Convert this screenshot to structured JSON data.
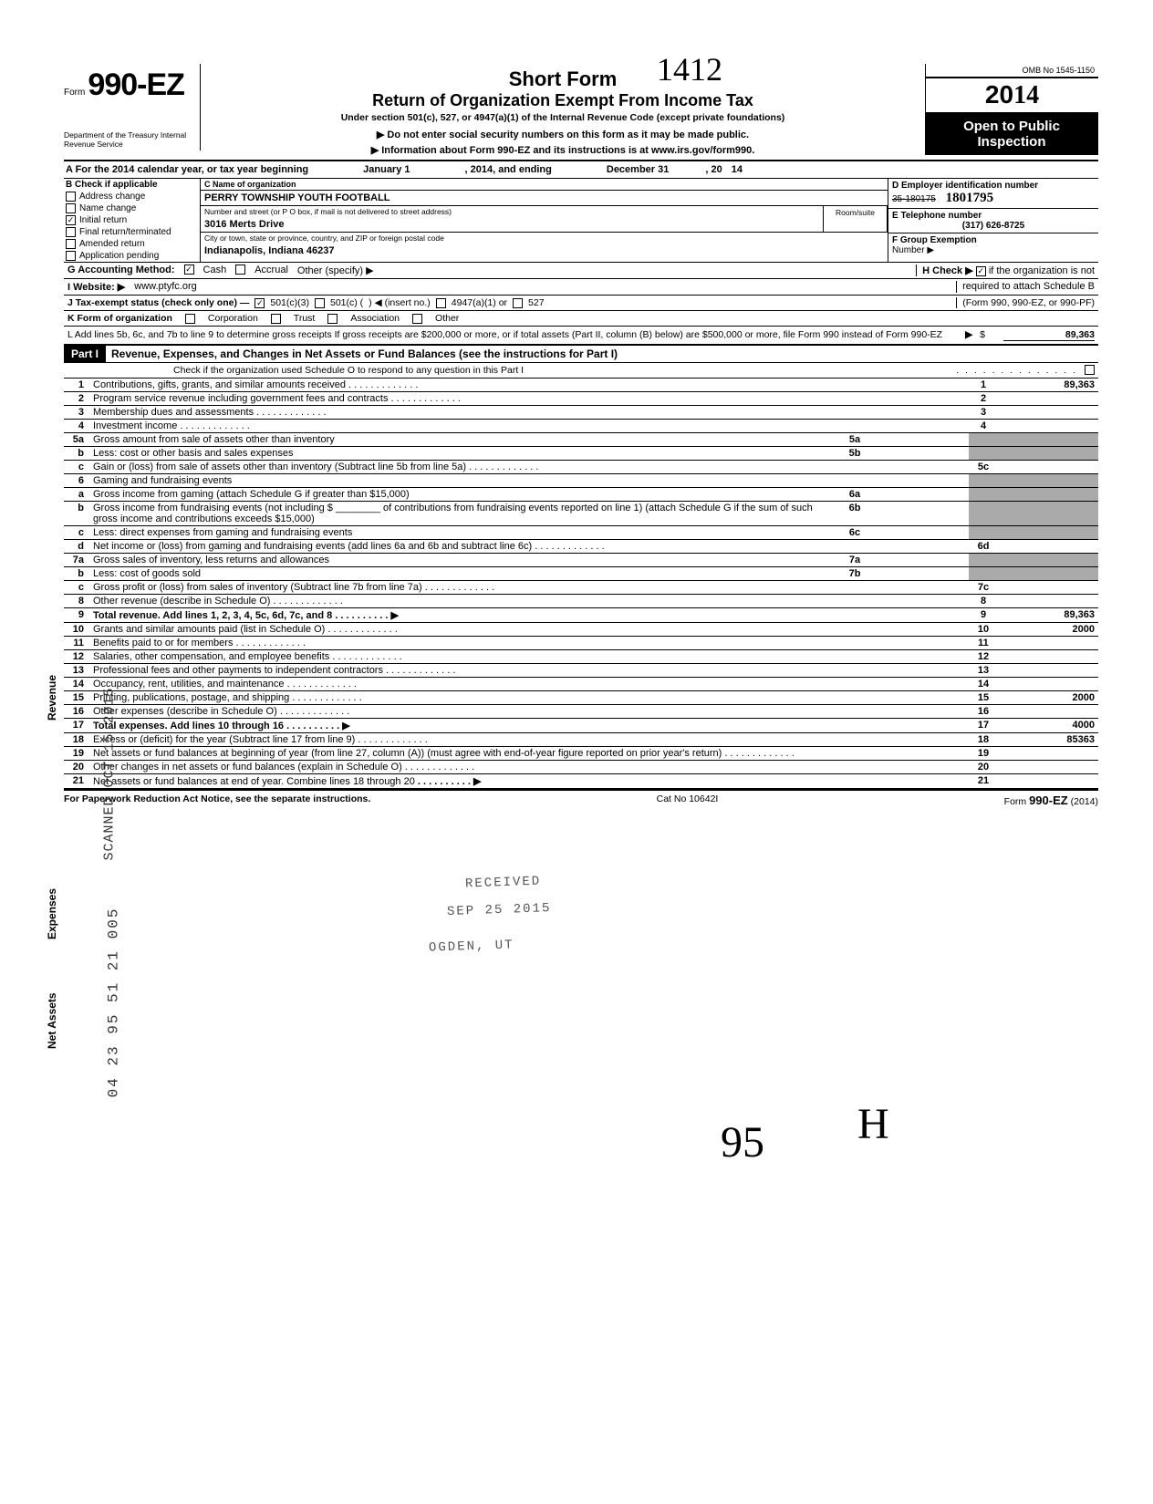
{
  "header": {
    "form_prefix": "Form",
    "form_number": "990-EZ",
    "short_form": "Short Form",
    "return_title": "Return of Organization Exempt From Income Tax",
    "under_section": "Under section 501(c), 527, or 4947(a)(1) of the Internal Revenue Code (except private foundations)",
    "do_not_enter": "▶ Do not enter social security numbers on this form as it may be made public.",
    "info_about": "▶ Information about Form 990-EZ and its instructions is at www.irs.gov/form990.",
    "omb": "OMB No 1545-1150",
    "year_prefix": "20",
    "year_hw": "14",
    "open_public": "Open to Public",
    "inspection": "Inspection",
    "dept": "Department of the Treasury\nInternal Revenue Service",
    "hw_top": "1412"
  },
  "line_a": {
    "prefix": "A  For the 2014 calendar year, or tax year beginning",
    "begin": "January 1",
    "mid": ", 2014, and ending",
    "end_month": "December 31",
    "end_year_lbl": ", 20",
    "end_year": "14"
  },
  "col_b": {
    "header": "B  Check if applicable",
    "items": [
      {
        "label": "Address change",
        "checked": false
      },
      {
        "label": "Name change",
        "checked": false
      },
      {
        "label": "Initial return",
        "checked": true
      },
      {
        "label": "Final return/terminated",
        "checked": false
      },
      {
        "label": "Amended return",
        "checked": false
      },
      {
        "label": "Application pending",
        "checked": false
      }
    ]
  },
  "col_c": {
    "name_lbl": "C  Name of organization",
    "name": "PERRY TOWNSHIP YOUTH FOOTBALL",
    "addr_lbl": "Number and street (or P O  box, if mail is not delivered to street address)",
    "addr": "3016 Merts Drive",
    "city_lbl": "City or town, state or province, country, and ZIP or foreign postal code",
    "city": "Indianapolis, Indiana  46237",
    "room_lbl": "Room/suite"
  },
  "col_d": {
    "ein_lbl": "D  Employer identification number",
    "ein_old": "35-180175",
    "ein_hw": "1801795",
    "phone_lbl": "E  Telephone number",
    "phone": "(317) 626-8725",
    "group_lbl": "F  Group Exemption",
    "group_num": "Number  ▶"
  },
  "row_g": {
    "g_lbl": "G  Accounting Method:",
    "cash": "Cash",
    "accrual": "Accrual",
    "other": "Other (specify) ▶",
    "h_text": "H  Check ▶",
    "h_rest": "if the organization is not",
    "h_line2": "required to attach Schedule B",
    "h_line3": "(Form 990, 990-EZ, or 990-PF)"
  },
  "row_i": {
    "lbl": "I   Website: ▶",
    "val": "www.ptyfc.org"
  },
  "row_j": {
    "lbl": "J  Tax-exempt status (check only one) —",
    "a": "501(c)(3)",
    "b": "501(c) (",
    "insert": ") ◀ (insert no.)",
    "c": "4947(a)(1) or",
    "d": "527"
  },
  "row_k": {
    "lbl": "K  Form of organization",
    "corp": "Corporation",
    "trust": "Trust",
    "assoc": "Association",
    "other": "Other"
  },
  "row_l": {
    "text": "L  Add lines 5b, 6c, and 7b to line 9 to determine gross receipts  If gross receipts are $200,000 or more, or if total assets (Part II, column (B) below) are $500,000 or more, file Form 990 instead of Form 990-EZ",
    "arrow": "▶",
    "dollar": "$",
    "val": "89,363"
  },
  "part1": {
    "hdr": "Part I",
    "title": "Revenue, Expenses, and Changes in Net Assets or Fund Balances (see the instructions for Part I)",
    "check": "Check if the organization used Schedule O to respond to any question in this Part I"
  },
  "lines": [
    {
      "n": "1",
      "desc": "Contributions, gifts, grants, and similar amounts received",
      "rn": "1",
      "rv": "89,363"
    },
    {
      "n": "2",
      "desc": "Program service revenue including government fees and contracts",
      "rn": "2",
      "rv": ""
    },
    {
      "n": "3",
      "desc": "Membership dues and assessments",
      "rn": "3",
      "rv": ""
    },
    {
      "n": "4",
      "desc": "Investment income",
      "rn": "4",
      "rv": ""
    },
    {
      "n": "5a",
      "desc": "Gross amount from sale of assets other than inventory",
      "mn": "5a",
      "mv": "",
      "shade_r": true
    },
    {
      "n": "b",
      "desc": "Less: cost or other basis and sales expenses",
      "mn": "5b",
      "mv": "",
      "shade_r": true
    },
    {
      "n": "c",
      "desc": "Gain or (loss) from sale of assets other than inventory (Subtract line 5b from line 5a)",
      "rn": "5c",
      "rv": ""
    },
    {
      "n": "6",
      "desc": "Gaming and fundraising events",
      "shade_r": true,
      "shade_all": true
    },
    {
      "n": "a",
      "desc": "Gross income from gaming (attach Schedule G if greater than $15,000)",
      "mn": "6a",
      "mv": "",
      "shade_r": true
    },
    {
      "n": "b",
      "desc": "Gross income from fundraising events (not including  $ ________ of contributions from fundraising events reported on line 1) (attach Schedule G if the sum of such gross income and contributions exceeds $15,000)",
      "mn": "6b",
      "mv": "",
      "shade_r": true
    },
    {
      "n": "c",
      "desc": "Less: direct expenses from gaming and fundraising events",
      "mn": "6c",
      "mv": "",
      "shade_r": true
    },
    {
      "n": "d",
      "desc": "Net income or (loss) from gaming and fundraising events (add lines 6a and 6b and subtract line 6c)",
      "rn": "6d",
      "rv": ""
    },
    {
      "n": "7a",
      "desc": "Gross sales of inventory, less returns and allowances",
      "mn": "7a",
      "mv": "",
      "shade_r": true
    },
    {
      "n": "b",
      "desc": "Less: cost of goods sold",
      "mn": "7b",
      "mv": "",
      "shade_r": true
    },
    {
      "n": "c",
      "desc": "Gross profit or (loss) from sales of inventory (Subtract line 7b from line 7a)",
      "rn": "7c",
      "rv": ""
    },
    {
      "n": "8",
      "desc": "Other revenue (describe in Schedule O)",
      "rn": "8",
      "rv": ""
    },
    {
      "n": "9",
      "desc": "Total revenue. Add lines 1, 2, 3, 4, 5c, 6d, 7c, and 8",
      "rn": "9",
      "rv": "89,363",
      "bold": true,
      "arrow": true
    },
    {
      "n": "10",
      "desc": "Grants and similar amounts paid (list in Schedule O)",
      "rn": "10",
      "rv": "2000"
    },
    {
      "n": "11",
      "desc": "Benefits paid to or for members",
      "rn": "11",
      "rv": ""
    },
    {
      "n": "12",
      "desc": "Salaries, other compensation, and employee benefits",
      "rn": "12",
      "rv": ""
    },
    {
      "n": "13",
      "desc": "Professional fees and other payments to independent contractors",
      "rn": "13",
      "rv": ""
    },
    {
      "n": "14",
      "desc": "Occupancy, rent, utilities, and maintenance",
      "rn": "14",
      "rv": ""
    },
    {
      "n": "15",
      "desc": "Printing, publications, postage, and shipping",
      "rn": "15",
      "rv": "2000"
    },
    {
      "n": "16",
      "desc": "Other expenses (describe in Schedule O)",
      "rn": "16",
      "rv": ""
    },
    {
      "n": "17",
      "desc": "Total expenses. Add lines 10 through 16",
      "rn": "17",
      "rv": "4000",
      "bold": true,
      "arrow": true
    },
    {
      "n": "18",
      "desc": "Excess or (deficit) for the year (Subtract line 17 from line 9)",
      "rn": "18",
      "rv": "85363"
    },
    {
      "n": "19",
      "desc": "Net assets or fund balances at beginning of year (from line 27, column (A)) (must agree with end-of-year figure reported on prior year's return)",
      "rn": "19",
      "rv": ""
    },
    {
      "n": "20",
      "desc": "Other changes in net assets or fund balances (explain in Schedule O)",
      "rn": "20",
      "rv": ""
    },
    {
      "n": "21",
      "desc": "Net assets or fund balances at end of year. Combine lines 18 through 20",
      "rn": "21",
      "rv": "",
      "arrow": true
    }
  ],
  "side_labels": {
    "rev": "Revenue",
    "exp": "Expenses",
    "net": "Net Assets"
  },
  "footer": {
    "left": "For Paperwork Reduction Act Notice, see the separate instructions.",
    "mid": "Cat  No  10642I",
    "right_a": "Form",
    "right_b": "990-EZ",
    "right_c": "(2014)"
  },
  "stamps": {
    "received": "RECEIVED",
    "date": "SEP 25 2015",
    "ogden": "OGDEN, UT",
    "scanned": "SCANNED OCT 15 2015",
    "side_date": "04 23 95 51 21 005"
  },
  "sigs": {
    "a": "95",
    "b": "H"
  }
}
